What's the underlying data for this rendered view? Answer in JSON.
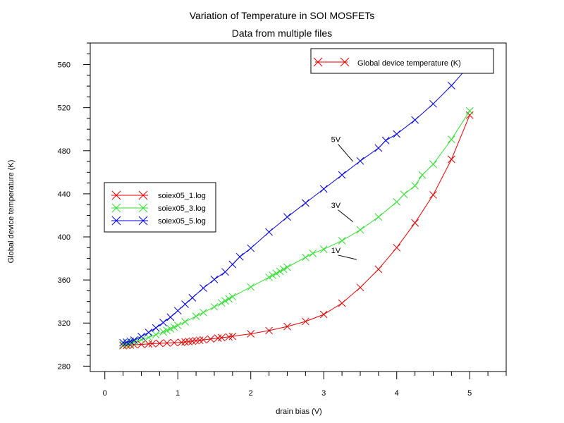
{
  "chart_data": {
    "type": "line",
    "title": "Variation of Temperature in SOI MOSFETs",
    "subtitle": "Data from multiple files",
    "xlabel": "drain bias (V)",
    "ylabel": "Global device temperature (K)",
    "xlim": [
      -0.2,
      5.5
    ],
    "ylim": [
      275,
      580
    ],
    "xticks": [
      0,
      1,
      2,
      3,
      4,
      5
    ],
    "yticks": [
      280,
      320,
      360,
      400,
      440,
      480,
      520,
      560
    ],
    "grid": false,
    "legend_main": "Global device temperature (K)",
    "legend_placement": "middle-left",
    "series": [
      {
        "name": "soiex05_1.log",
        "color": "#e00000",
        "x": [
          0.25,
          0.3,
          0.35,
          0.4,
          0.5,
          0.6,
          0.65,
          0.75,
          0.85,
          0.95,
          1.05,
          1.1,
          1.15,
          1.2,
          1.25,
          1.3,
          1.35,
          1.45,
          1.55,
          1.6,
          1.7,
          1.75,
          2.0,
          2.25,
          2.5,
          2.75,
          3.0,
          3.25,
          3.5,
          3.75,
          4.0,
          4.25,
          4.5,
          4.75,
          5.0
        ],
        "y": [
          299,
          299.3,
          299.6,
          299.9,
          300.2,
          300.6,
          300.9,
          301.2,
          301.5,
          301.8,
          302.1,
          302.5,
          302.8,
          303.2,
          303.6,
          304.0,
          304.4,
          305.2,
          306.0,
          306.4,
          307.2,
          307.7,
          310,
          313,
          316.8,
          321.5,
          328,
          338.5,
          353,
          370,
          390,
          413,
          439,
          472,
          513
        ]
      },
      {
        "name": "soiex05_3.log",
        "color": "#33dd33",
        "x": [
          0.25,
          0.3,
          0.35,
          0.4,
          0.5,
          0.6,
          0.7,
          0.8,
          0.85,
          0.9,
          0.95,
          1.0,
          1.1,
          1.25,
          1.35,
          1.5,
          1.6,
          1.65,
          1.7,
          1.75,
          2.0,
          2.25,
          2.3,
          2.35,
          2.4,
          2.45,
          2.5,
          2.75,
          2.85,
          3.0,
          3.25,
          3.5,
          3.75,
          4.0,
          4.1,
          4.25,
          4.35,
          4.5,
          4.75,
          5.0
        ],
        "y": [
          300,
          300.8,
          301.6,
          302.5,
          304.5,
          306.7,
          309.2,
          311.8,
          313.2,
          314.7,
          316.2,
          317.8,
          321.2,
          326.3,
          329.8,
          335,
          338.7,
          340.6,
          342.5,
          344.5,
          353.5,
          362.5,
          364.3,
          366.1,
          368,
          369.9,
          371.8,
          381,
          384.7,
          388.5,
          396.5,
          406.5,
          418.5,
          432.5,
          439.5,
          447.5,
          457.5,
          467.5,
          490.5,
          517
        ]
      },
      {
        "name": "soiex05_5.log",
        "color": "#0000dd",
        "x": [
          0.25,
          0.3,
          0.35,
          0.4,
          0.5,
          0.6,
          0.7,
          0.8,
          0.9,
          1.0,
          1.1,
          1.2,
          1.35,
          1.5,
          1.65,
          1.75,
          1.85,
          2.0,
          2.25,
          2.5,
          2.75,
          3.0,
          3.25,
          3.5,
          3.75,
          3.85,
          4.0,
          4.25,
          4.5,
          4.75,
          5.0
        ],
        "y": [
          301.8,
          302.2,
          303.1,
          304.1,
          307.5,
          311.3,
          315.5,
          320.5,
          325.5,
          331.5,
          337.5,
          343.5,
          352.5,
          360.5,
          367.5,
          374.5,
          381.5,
          389.5,
          404.5,
          418.5,
          431.5,
          444.5,
          457.5,
          470.5,
          482.5,
          489.5,
          495.5,
          508.5,
          523.5,
          540.5,
          559.5
        ]
      }
    ],
    "annotations": [
      {
        "text": "5V",
        "x": 3.1,
        "y": 488,
        "to_x": 3.4,
        "to_y": 470
      },
      {
        "text": "3V",
        "x": 3.1,
        "y": 427,
        "to_x": 3.4,
        "to_y": 414
      },
      {
        "text": "1V",
        "x": 3.1,
        "y": 385,
        "to_x": 3.45,
        "to_y": 379
      }
    ]
  }
}
